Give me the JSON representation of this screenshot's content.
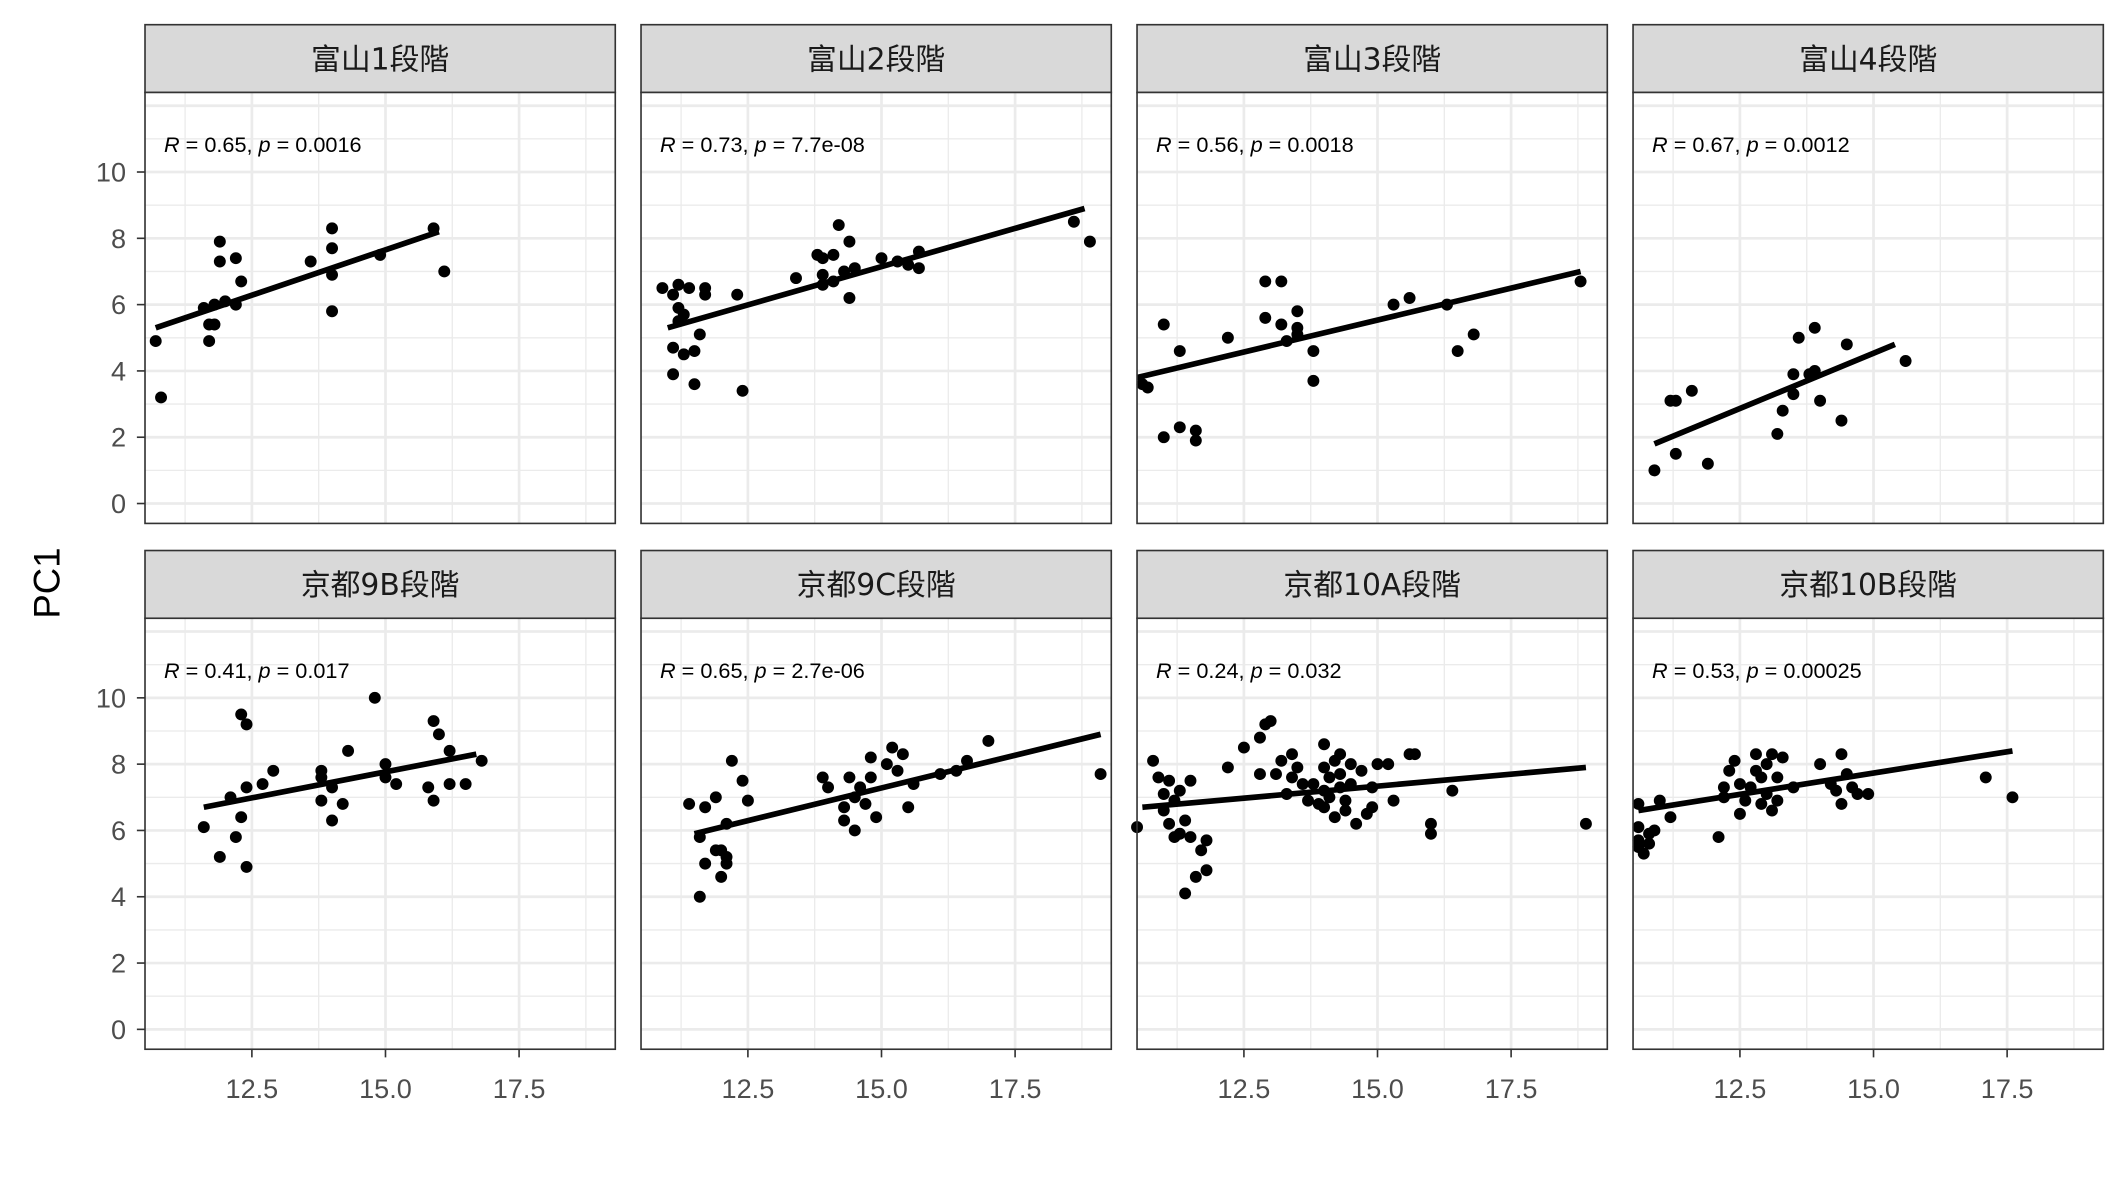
{
  "ylabel": "PC1",
  "panels_layout": "2 rows x 4 columns, shared axes",
  "chart_data": [
    {
      "type": "scatter",
      "title": "富山1段階",
      "stat": {
        "r": "0.65",
        "p": "0.0016"
      },
      "xlim": [
        10.5,
        19.3
      ],
      "ylim": [
        -0.6,
        12.4
      ],
      "xticks": [
        "12.5",
        "15.0",
        "17.5"
      ],
      "yticks": [
        "0",
        "2",
        "4",
        "6",
        "8",
        "10"
      ],
      "grid": true,
      "points": [
        [
          10.7,
          4.9
        ],
        [
          10.8,
          3.2
        ],
        [
          11.6,
          5.9
        ],
        [
          11.7,
          5.4
        ],
        [
          11.7,
          4.9
        ],
        [
          11.8,
          5.4
        ],
        [
          11.8,
          6.0
        ],
        [
          11.9,
          7.9
        ],
        [
          11.9,
          7.3
        ],
        [
          12.0,
          6.1
        ],
        [
          12.2,
          7.4
        ],
        [
          12.2,
          6.0
        ],
        [
          12.3,
          6.7
        ],
        [
          13.6,
          7.3
        ],
        [
          14.0,
          8.3
        ],
        [
          14.0,
          7.7
        ],
        [
          14.0,
          6.9
        ],
        [
          14.0,
          5.8
        ],
        [
          14.9,
          7.5
        ],
        [
          15.9,
          8.3
        ],
        [
          16.1,
          7.0
        ]
      ],
      "fit": [
        [
          10.7,
          5.3
        ],
        [
          16.0,
          8.2
        ]
      ]
    },
    {
      "type": "scatter",
      "title": "富山2段階",
      "stat": {
        "r": "0.73",
        "p": "7.7e-08"
      },
      "xlim": [
        10.5,
        19.3
      ],
      "ylim": [
        -0.6,
        12.4
      ],
      "xticks": [
        "12.5",
        "15.0",
        "17.5"
      ],
      "yticks": [
        "0",
        "2",
        "4",
        "6",
        "8",
        "10"
      ],
      "grid": true,
      "points": [
        [
          10.9,
          6.5
        ],
        [
          11.1,
          6.3
        ],
        [
          11.1,
          4.7
        ],
        [
          11.1,
          3.9
        ],
        [
          11.2,
          6.6
        ],
        [
          11.2,
          5.9
        ],
        [
          11.2,
          5.5
        ],
        [
          11.3,
          5.7
        ],
        [
          11.3,
          4.5
        ],
        [
          11.4,
          6.5
        ],
        [
          11.5,
          4.6
        ],
        [
          11.5,
          3.6
        ],
        [
          11.6,
          5.1
        ],
        [
          11.7,
          6.3
        ],
        [
          11.7,
          6.5
        ],
        [
          12.3,
          6.3
        ],
        [
          12.4,
          3.4
        ],
        [
          13.4,
          6.8
        ],
        [
          13.8,
          7.5
        ],
        [
          13.9,
          7.4
        ],
        [
          13.9,
          6.9
        ],
        [
          13.9,
          6.6
        ],
        [
          14.1,
          7.5
        ],
        [
          14.1,
          6.7
        ],
        [
          14.2,
          8.4
        ],
        [
          14.3,
          7.0
        ],
        [
          14.4,
          7.9
        ],
        [
          14.4,
          6.2
        ],
        [
          14.5,
          7.1
        ],
        [
          15.0,
          7.4
        ],
        [
          15.3,
          7.3
        ],
        [
          15.5,
          7.2
        ],
        [
          15.7,
          7.6
        ],
        [
          15.7,
          7.1
        ],
        [
          18.6,
          8.5
        ],
        [
          18.9,
          7.9
        ]
      ],
      "fit": [
        [
          11.0,
          5.3
        ],
        [
          18.8,
          8.9
        ]
      ]
    },
    {
      "type": "scatter",
      "title": "富山3段階",
      "stat": {
        "r": "0.56",
        "p": "0.0018"
      },
      "xlim": [
        10.5,
        19.3
      ],
      "ylim": [
        -0.6,
        12.4
      ],
      "xticks": [
        "12.5",
        "15.0",
        "17.5"
      ],
      "yticks": [
        "0",
        "2",
        "4",
        "6",
        "8",
        "10"
      ],
      "grid": true,
      "points": [
        [
          10.6,
          3.6
        ],
        [
          10.7,
          3.5
        ],
        [
          11.0,
          5.4
        ],
        [
          11.0,
          2.0
        ],
        [
          11.3,
          4.6
        ],
        [
          11.3,
          2.3
        ],
        [
          11.6,
          2.2
        ],
        [
          11.6,
          1.9
        ],
        [
          12.2,
          5.0
        ],
        [
          12.9,
          6.7
        ],
        [
          12.9,
          5.6
        ],
        [
          13.2,
          6.7
        ],
        [
          13.2,
          5.4
        ],
        [
          13.3,
          4.9
        ],
        [
          13.5,
          5.8
        ],
        [
          13.5,
          5.3
        ],
        [
          13.5,
          5.1
        ],
        [
          13.8,
          4.6
        ],
        [
          13.8,
          3.7
        ],
        [
          15.3,
          6.0
        ],
        [
          15.6,
          6.2
        ],
        [
          16.3,
          6.0
        ],
        [
          16.5,
          4.6
        ],
        [
          16.8,
          5.1
        ],
        [
          18.8,
          6.7
        ]
      ],
      "fit": [
        [
          10.5,
          3.8
        ],
        [
          18.8,
          7.0
        ]
      ]
    },
    {
      "type": "scatter",
      "title": "富山4段階",
      "stat": {
        "r": "0.67",
        "p": "0.0012"
      },
      "xlim": [
        10.5,
        19.3
      ],
      "ylim": [
        -0.6,
        12.4
      ],
      "xticks": [
        "12.5",
        "15.0",
        "17.5"
      ],
      "yticks": [
        "0",
        "2",
        "4",
        "6",
        "8",
        "10"
      ],
      "grid": true,
      "points": [
        [
          10.9,
          1.0
        ],
        [
          11.2,
          3.1
        ],
        [
          11.3,
          3.1
        ],
        [
          11.3,
          1.5
        ],
        [
          11.6,
          3.4
        ],
        [
          11.9,
          1.2
        ],
        [
          13.2,
          2.1
        ],
        [
          13.3,
          2.8
        ],
        [
          13.5,
          3.9
        ],
        [
          13.5,
          3.3
        ],
        [
          13.6,
          5.0
        ],
        [
          13.8,
          3.9
        ],
        [
          13.9,
          4.0
        ],
        [
          13.9,
          5.3
        ],
        [
          14.0,
          3.1
        ],
        [
          14.4,
          2.5
        ],
        [
          14.5,
          4.8
        ],
        [
          15.6,
          4.3
        ]
      ],
      "fit": [
        [
          10.9,
          1.8
        ],
        [
          15.4,
          4.8
        ]
      ]
    },
    {
      "type": "scatter",
      "title": "京都9B段階",
      "stat": {
        "r": "0.41",
        "p": "0.017"
      },
      "xlim": [
        10.5,
        19.3
      ],
      "ylim": [
        -0.6,
        12.4
      ],
      "xticks": [
        "12.5",
        "15.0",
        "17.5"
      ],
      "yticks": [
        "0",
        "2",
        "4",
        "6",
        "8",
        "10"
      ],
      "grid": true,
      "points": [
        [
          11.6,
          6.1
        ],
        [
          11.9,
          5.2
        ],
        [
          12.1,
          7.0
        ],
        [
          12.2,
          5.8
        ],
        [
          12.3,
          9.5
        ],
        [
          12.3,
          6.4
        ],
        [
          12.4,
          9.2
        ],
        [
          12.4,
          7.3
        ],
        [
          12.4,
          4.9
        ],
        [
          12.7,
          7.4
        ],
        [
          12.9,
          7.8
        ],
        [
          13.8,
          7.8
        ],
        [
          13.8,
          7.6
        ],
        [
          13.8,
          6.9
        ],
        [
          14.0,
          7.3
        ],
        [
          14.0,
          6.3
        ],
        [
          14.2,
          6.8
        ],
        [
          14.3,
          8.4
        ],
        [
          14.8,
          10.0
        ],
        [
          15.0,
          8.0
        ],
        [
          15.0,
          7.6
        ],
        [
          15.2,
          7.4
        ],
        [
          15.8,
          7.3
        ],
        [
          15.9,
          9.3
        ],
        [
          15.9,
          6.9
        ],
        [
          16.0,
          8.9
        ],
        [
          16.2,
          8.4
        ],
        [
          16.2,
          7.4
        ],
        [
          16.5,
          7.4
        ],
        [
          16.8,
          8.1
        ]
      ],
      "fit": [
        [
          11.6,
          6.7
        ],
        [
          16.7,
          8.3
        ]
      ]
    },
    {
      "type": "scatter",
      "title": "京都9C段階",
      "stat": {
        "r": "0.65",
        "p": "2.7e-06"
      },
      "xlim": [
        10.5,
        19.3
      ],
      "ylim": [
        -0.6,
        12.4
      ],
      "xticks": [
        "12.5",
        "15.0",
        "17.5"
      ],
      "yticks": [
        "0",
        "2",
        "4",
        "6",
        "8",
        "10"
      ],
      "grid": true,
      "points": [
        [
          11.4,
          6.8
        ],
        [
          11.6,
          5.8
        ],
        [
          11.6,
          4.0
        ],
        [
          11.7,
          6.7
        ],
        [
          11.7,
          5.0
        ],
        [
          11.9,
          5.4
        ],
        [
          11.9,
          7.0
        ],
        [
          12.0,
          5.4
        ],
        [
          12.0,
          4.6
        ],
        [
          12.1,
          5.2
        ],
        [
          12.1,
          5.0
        ],
        [
          12.1,
          6.2
        ],
        [
          12.2,
          8.1
        ],
        [
          12.4,
          7.5
        ],
        [
          12.5,
          6.9
        ],
        [
          13.9,
          7.6
        ],
        [
          14.0,
          7.3
        ],
        [
          14.3,
          6.3
        ],
        [
          14.3,
          6.7
        ],
        [
          14.4,
          7.6
        ],
        [
          14.5,
          7.0
        ],
        [
          14.5,
          6.0
        ],
        [
          14.6,
          7.3
        ],
        [
          14.7,
          6.8
        ],
        [
          14.8,
          8.2
        ],
        [
          14.8,
          7.6
        ],
        [
          14.9,
          6.4
        ],
        [
          15.1,
          8.0
        ],
        [
          15.2,
          8.5
        ],
        [
          15.3,
          7.8
        ],
        [
          15.4,
          8.3
        ],
        [
          15.5,
          6.7
        ],
        [
          15.6,
          7.4
        ],
        [
          16.1,
          7.7
        ],
        [
          16.4,
          7.8
        ],
        [
          16.6,
          8.1
        ],
        [
          17.0,
          8.7
        ],
        [
          19.1,
          7.7
        ]
      ],
      "fit": [
        [
          11.5,
          5.9
        ],
        [
          19.1,
          8.9
        ]
      ]
    },
    {
      "type": "scatter",
      "title": "京都10A段階",
      "stat": {
        "r": "0.24",
        "p": "0.032"
      },
      "xlim": [
        10.5,
        19.3
      ],
      "ylim": [
        -0.6,
        12.4
      ],
      "xticks": [
        "12.5",
        "15.0",
        "17.5"
      ],
      "yticks": [
        "0",
        "2",
        "4",
        "6",
        "8",
        "10"
      ],
      "grid": true,
      "points": [
        [
          10.5,
          6.1
        ],
        [
          10.8,
          8.1
        ],
        [
          10.9,
          7.6
        ],
        [
          11.0,
          6.6
        ],
        [
          11.0,
          7.1
        ],
        [
          11.1,
          7.5
        ],
        [
          11.1,
          6.2
        ],
        [
          11.2,
          5.8
        ],
        [
          11.2,
          6.9
        ],
        [
          11.3,
          7.2
        ],
        [
          11.3,
          5.9
        ],
        [
          11.4,
          6.3
        ],
        [
          11.4,
          4.1
        ],
        [
          11.5,
          5.8
        ],
        [
          11.5,
          7.5
        ],
        [
          11.6,
          4.6
        ],
        [
          11.7,
          5.4
        ],
        [
          11.8,
          5.7
        ],
        [
          11.8,
          4.8
        ],
        [
          12.2,
          7.9
        ],
        [
          12.5,
          8.5
        ],
        [
          12.8,
          8.8
        ],
        [
          12.8,
          7.7
        ],
        [
          12.9,
          9.2
        ],
        [
          13.0,
          9.3
        ],
        [
          13.1,
          7.7
        ],
        [
          13.2,
          8.1
        ],
        [
          13.3,
          7.1
        ],
        [
          13.4,
          8.3
        ],
        [
          13.4,
          7.6
        ],
        [
          13.5,
          7.9
        ],
        [
          13.6,
          7.4
        ],
        [
          13.7,
          6.9
        ],
        [
          13.8,
          7.4
        ],
        [
          13.9,
          6.8
        ],
        [
          14.0,
          8.6
        ],
        [
          14.0,
          7.9
        ],
        [
          14.0,
          7.2
        ],
        [
          14.0,
          6.7
        ],
        [
          14.1,
          7.6
        ],
        [
          14.1,
          7.0
        ],
        [
          14.2,
          8.1
        ],
        [
          14.2,
          6.4
        ],
        [
          14.3,
          8.3
        ],
        [
          14.3,
          7.7
        ],
        [
          14.3,
          7.3
        ],
        [
          14.4,
          6.9
        ],
        [
          14.4,
          6.6
        ],
        [
          14.5,
          8.0
        ],
        [
          14.5,
          7.4
        ],
        [
          14.6,
          6.2
        ],
        [
          14.7,
          7.8
        ],
        [
          14.8,
          6.5
        ],
        [
          14.9,
          7.3
        ],
        [
          14.9,
          6.7
        ],
        [
          15.0,
          8.0
        ],
        [
          15.2,
          8.0
        ],
        [
          15.3,
          6.9
        ],
        [
          15.6,
          8.3
        ],
        [
          15.7,
          8.3
        ],
        [
          16.0,
          6.2
        ],
        [
          16.0,
          5.9
        ],
        [
          16.4,
          7.2
        ],
        [
          18.9,
          6.2
        ]
      ],
      "fit": [
        [
          10.6,
          6.7
        ],
        [
          18.9,
          7.9
        ]
      ]
    },
    {
      "type": "scatter",
      "title": "京都10B段階",
      "stat": {
        "r": "0.53",
        "p": "0.00025"
      },
      "xlim": [
        10.5,
        19.3
      ],
      "ylim": [
        -0.6,
        12.4
      ],
      "xticks": [
        "12.5",
        "15.0",
        "17.5"
      ],
      "yticks": [
        "0",
        "2",
        "4",
        "6",
        "8",
        "10"
      ],
      "grid": true,
      "points": [
        [
          10.6,
          6.8
        ],
        [
          10.6,
          6.1
        ],
        [
          10.6,
          5.7
        ],
        [
          10.6,
          5.5
        ],
        [
          10.7,
          5.3
        ],
        [
          10.8,
          5.6
        ],
        [
          10.8,
          5.9
        ],
        [
          10.9,
          6.0
        ],
        [
          11.0,
          6.9
        ],
        [
          11.2,
          6.4
        ],
        [
          12.1,
          5.8
        ],
        [
          12.2,
          7.3
        ],
        [
          12.2,
          7.0
        ],
        [
          12.3,
          7.8
        ],
        [
          12.4,
          8.1
        ],
        [
          12.5,
          7.4
        ],
        [
          12.5,
          6.5
        ],
        [
          12.6,
          6.9
        ],
        [
          12.7,
          7.3
        ],
        [
          12.8,
          8.3
        ],
        [
          12.8,
          7.8
        ],
        [
          12.9,
          7.6
        ],
        [
          12.9,
          6.8
        ],
        [
          13.0,
          8.0
        ],
        [
          13.0,
          7.1
        ],
        [
          13.1,
          8.3
        ],
        [
          13.1,
          6.6
        ],
        [
          13.2,
          7.6
        ],
        [
          13.2,
          6.9
        ],
        [
          13.3,
          8.2
        ],
        [
          13.5,
          7.3
        ],
        [
          14.0,
          8.0
        ],
        [
          14.2,
          7.4
        ],
        [
          14.3,
          7.2
        ],
        [
          14.4,
          8.3
        ],
        [
          14.4,
          6.8
        ],
        [
          14.5,
          7.7
        ],
        [
          14.6,
          7.3
        ],
        [
          14.7,
          7.1
        ],
        [
          14.9,
          7.1
        ],
        [
          17.1,
          7.6
        ],
        [
          17.6,
          7.0
        ]
      ],
      "fit": [
        [
          10.6,
          6.6
        ],
        [
          17.6,
          8.4
        ]
      ]
    }
  ]
}
